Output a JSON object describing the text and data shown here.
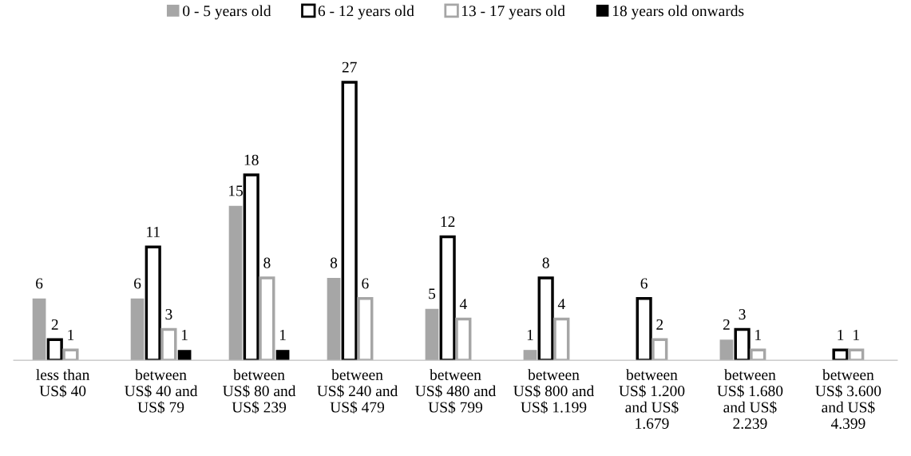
{
  "chart_data": {
    "type": "bar",
    "categories": [
      "less than\nUS$ 40",
      "between\nUS$ 40 and\nUS$ 79",
      "between\nUS$ 80 and\nUS$ 239",
      "between\nUS$ 240 and\nUS$ 479",
      "between\nUS$ 480 and\nUS$ 799",
      "between\nUS$ 800 and\nUS$ 1.199",
      "between\nUS$ 1.200\nand US$\n1.679",
      "between\nUS$ 1.680\nand US$\n2.239",
      "between\nUS$ 3.600\nand US$\n4.399"
    ],
    "series": [
      {
        "name": "0 - 5 years old",
        "color": "#a6a6a6",
        "values": [
          6,
          6,
          15,
          8,
          5,
          1,
          null,
          2,
          null
        ]
      },
      {
        "name": "6 - 12 years old",
        "color": "#000000",
        "values": [
          2,
          11,
          18,
          27,
          12,
          8,
          6,
          3,
          1
        ]
      },
      {
        "name": "13 - 17 years old",
        "color": "#a6a6a6",
        "values": [
          1,
          3,
          8,
          6,
          4,
          4,
          2,
          1,
          1
        ]
      },
      {
        "name": "18 years old onwards",
        "color": "#000000",
        "values": [
          null,
          1,
          1,
          null,
          null,
          null,
          null,
          null,
          null
        ]
      }
    ],
    "data_labels": true,
    "legend": "top",
    "grid": false
  }
}
